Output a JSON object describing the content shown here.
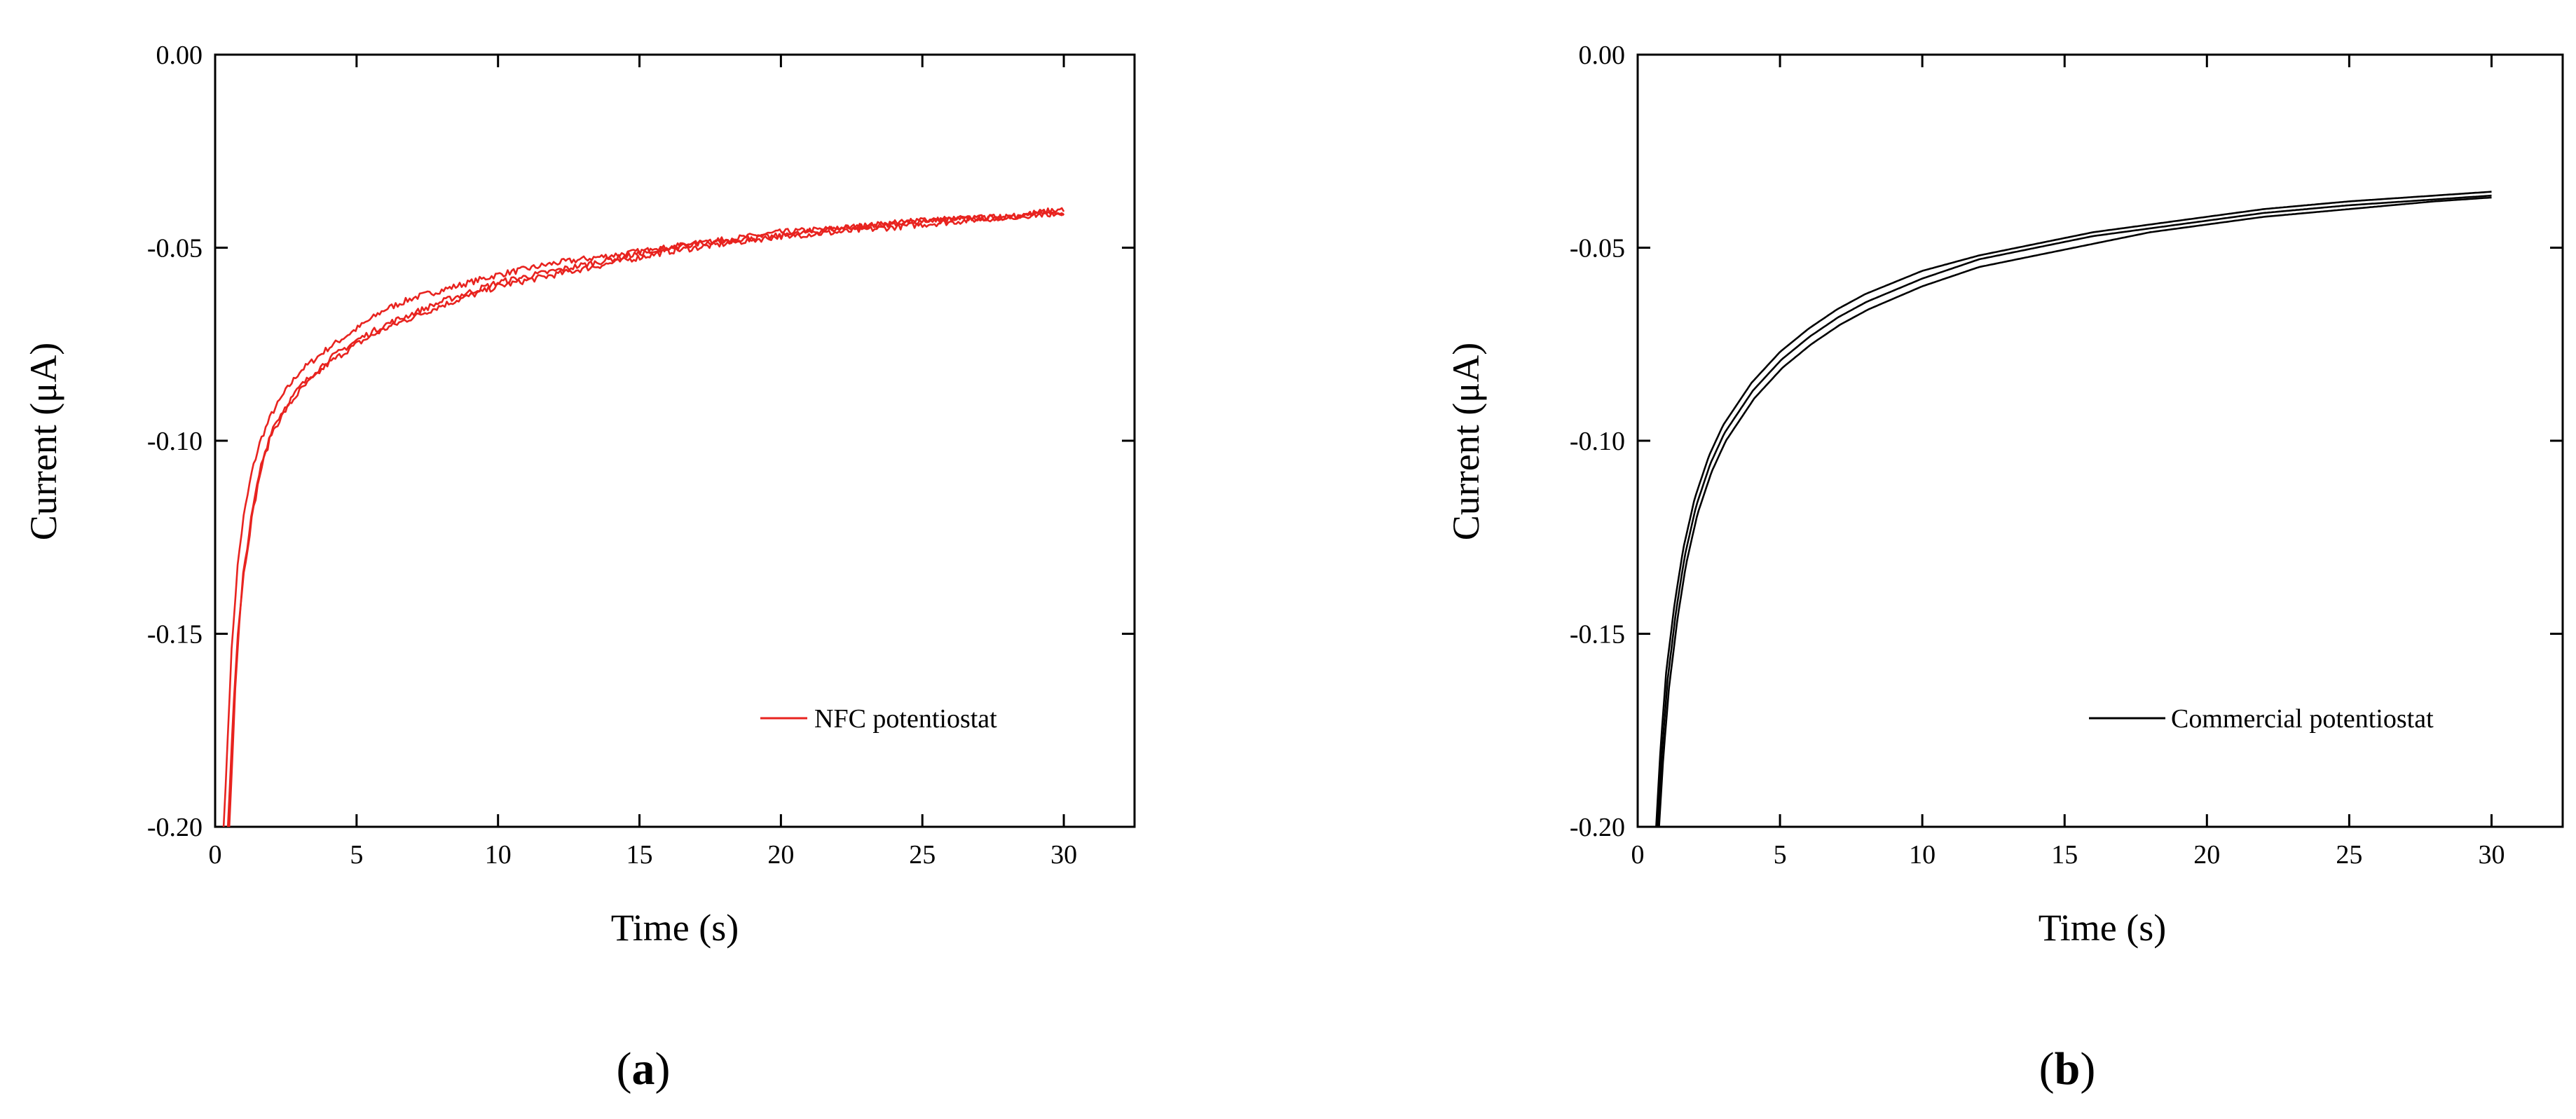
{
  "figure": {
    "panel_labels": [
      "(a)",
      "(b)"
    ]
  },
  "chart_data": [
    {
      "type": "line",
      "panel": "a",
      "xlabel": "Time (s)",
      "ylabel": "Current (μA)",
      "xlim": [
        0,
        32.5
      ],
      "ylim": [
        -0.2,
        0.0
      ],
      "xticks": [
        0,
        5,
        10,
        15,
        20,
        25,
        30
      ],
      "xtick_labels": [
        "0",
        "5",
        "10",
        "15",
        "20",
        "25",
        "30"
      ],
      "yticks": [
        0.0,
        -0.05,
        -0.1,
        -0.15,
        -0.2
      ],
      "ytick_labels": [
        "0.00",
        "-0.05",
        "-0.10",
        "-0.15",
        "-0.20"
      ],
      "grid": false,
      "legend": {
        "position": "lower-right",
        "entries": [
          "NFC potentiostat"
        ]
      },
      "series": [
        {
          "name": "NFC potentiostat",
          "color": "#e8231f",
          "noise": 0.0008,
          "x": [
            0.3,
            0.4,
            0.5,
            0.6,
            0.8,
            1.0,
            1.3,
            1.6,
            2.0,
            2.5,
            3.0,
            4.0,
            5.0,
            6.0,
            7.0,
            8.0,
            10.0,
            12.0,
            14.0,
            16.0,
            18.0,
            20.0,
            22.0,
            25.0,
            28.0,
            30.0
          ],
          "values": [
            -0.2,
            -0.185,
            -0.167,
            -0.152,
            -0.132,
            -0.12,
            -0.108,
            -0.1,
            -0.093,
            -0.087,
            -0.082,
            -0.076,
            -0.071,
            -0.066,
            -0.063,
            -0.061,
            -0.057,
            -0.054,
            -0.052,
            -0.05,
            -0.048,
            -0.046,
            -0.045,
            -0.043,
            -0.042,
            -0.041
          ]
        },
        {
          "name": "",
          "color": "#e8231f",
          "noise": 0.0008,
          "x": [
            0.45,
            0.55,
            0.65,
            0.8,
            1.0,
            1.3,
            1.6,
            2.0,
            2.5,
            3.0,
            4.0,
            5.0,
            6.0,
            7.0,
            8.0,
            10.0,
            12.0,
            14.0,
            16.0,
            18.0,
            20.0,
            22.0,
            25.0,
            28.0,
            30.0
          ],
          "values": [
            -0.2,
            -0.185,
            -0.168,
            -0.15,
            -0.135,
            -0.12,
            -0.108,
            -0.098,
            -0.092,
            -0.087,
            -0.08,
            -0.075,
            -0.071,
            -0.068,
            -0.065,
            -0.06,
            -0.057,
            -0.054,
            -0.051,
            -0.049,
            -0.047,
            -0.046,
            -0.044,
            -0.042,
            -0.041
          ]
        },
        {
          "name": "",
          "color": "#e8231f",
          "noise": 0.0008,
          "x": [
            0.5,
            0.6,
            0.7,
            0.85,
            1.0,
            1.3,
            1.6,
            2.0,
            2.5,
            3.0,
            4.0,
            5.0,
            6.0,
            7.0,
            8.0,
            10.0,
            12.0,
            14.0,
            16.0,
            18.0,
            20.0,
            22.0,
            25.0,
            28.0,
            30.0
          ],
          "values": [
            -0.2,
            -0.184,
            -0.166,
            -0.148,
            -0.134,
            -0.119,
            -0.107,
            -0.097,
            -0.091,
            -0.086,
            -0.079,
            -0.074,
            -0.07,
            -0.067,
            -0.064,
            -0.059,
            -0.056,
            -0.053,
            -0.05,
            -0.048,
            -0.047,
            -0.045,
            -0.043,
            -0.042,
            -0.04
          ]
        }
      ]
    },
    {
      "type": "line",
      "panel": "b",
      "xlabel": "Time (s)",
      "ylabel": "Current (μA)",
      "xlim": [
        0,
        32.5
      ],
      "ylim": [
        -0.2,
        0.0
      ],
      "xticks": [
        0,
        5,
        10,
        15,
        20,
        25,
        30
      ],
      "xtick_labels": [
        "0",
        "5",
        "10",
        "15",
        "20",
        "25",
        "30"
      ],
      "yticks": [
        0.0,
        -0.05,
        -0.1,
        -0.15,
        -0.2
      ],
      "ytick_labels": [
        "0.00",
        "-0.05",
        "-0.10",
        "-0.15",
        "-0.20"
      ],
      "grid": false,
      "legend": {
        "position": "lower-right",
        "entries": [
          "Commercial potentiostat"
        ]
      },
      "series": [
        {
          "name": "Commercial potentiostat",
          "color": "#000000",
          "noise": 0,
          "x": [
            0.65,
            0.8,
            1.0,
            1.3,
            1.6,
            2.0,
            2.5,
            3.0,
            4.0,
            5.0,
            6.0,
            7.0,
            8.0,
            10.0,
            12.0,
            14.0,
            16.0,
            18.0,
            20.0,
            22.0,
            25.0,
            28.0,
            30.0
          ],
          "values": [
            -0.2,
            -0.18,
            -0.16,
            -0.142,
            -0.128,
            -0.115,
            -0.104,
            -0.096,
            -0.085,
            -0.077,
            -0.071,
            -0.066,
            -0.062,
            -0.056,
            -0.052,
            -0.049,
            -0.046,
            -0.044,
            -0.042,
            -0.04,
            -0.038,
            -0.0365,
            -0.0355
          ]
        },
        {
          "name": "",
          "color": "#000000",
          "noise": 0,
          "x": [
            0.7,
            0.85,
            1.05,
            1.35,
            1.65,
            2.05,
            2.55,
            3.05,
            4.05,
            5.05,
            6.05,
            7.05,
            8.05,
            10.0,
            12.0,
            14.0,
            16.0,
            18.0,
            20.0,
            22.0,
            25.0,
            28.0,
            30.0
          ],
          "values": [
            -0.2,
            -0.181,
            -0.162,
            -0.144,
            -0.13,
            -0.117,
            -0.106,
            -0.098,
            -0.087,
            -0.079,
            -0.073,
            -0.068,
            -0.064,
            -0.058,
            -0.053,
            -0.05,
            -0.047,
            -0.045,
            -0.043,
            -0.041,
            -0.039,
            -0.0375,
            -0.0365
          ]
        },
        {
          "name": "",
          "color": "#000000",
          "noise": 0,
          "x": [
            0.75,
            0.9,
            1.1,
            1.4,
            1.7,
            2.1,
            2.6,
            3.1,
            4.1,
            5.1,
            6.1,
            7.1,
            8.1,
            10.0,
            12.0,
            14.0,
            16.0,
            18.0,
            20.0,
            22.0,
            25.0,
            28.0,
            30.0
          ],
          "values": [
            -0.2,
            -0.182,
            -0.164,
            -0.146,
            -0.132,
            -0.119,
            -0.108,
            -0.1,
            -0.089,
            -0.081,
            -0.075,
            -0.07,
            -0.066,
            -0.06,
            -0.055,
            -0.052,
            -0.049,
            -0.046,
            -0.044,
            -0.042,
            -0.04,
            -0.038,
            -0.037
          ]
        }
      ]
    }
  ]
}
